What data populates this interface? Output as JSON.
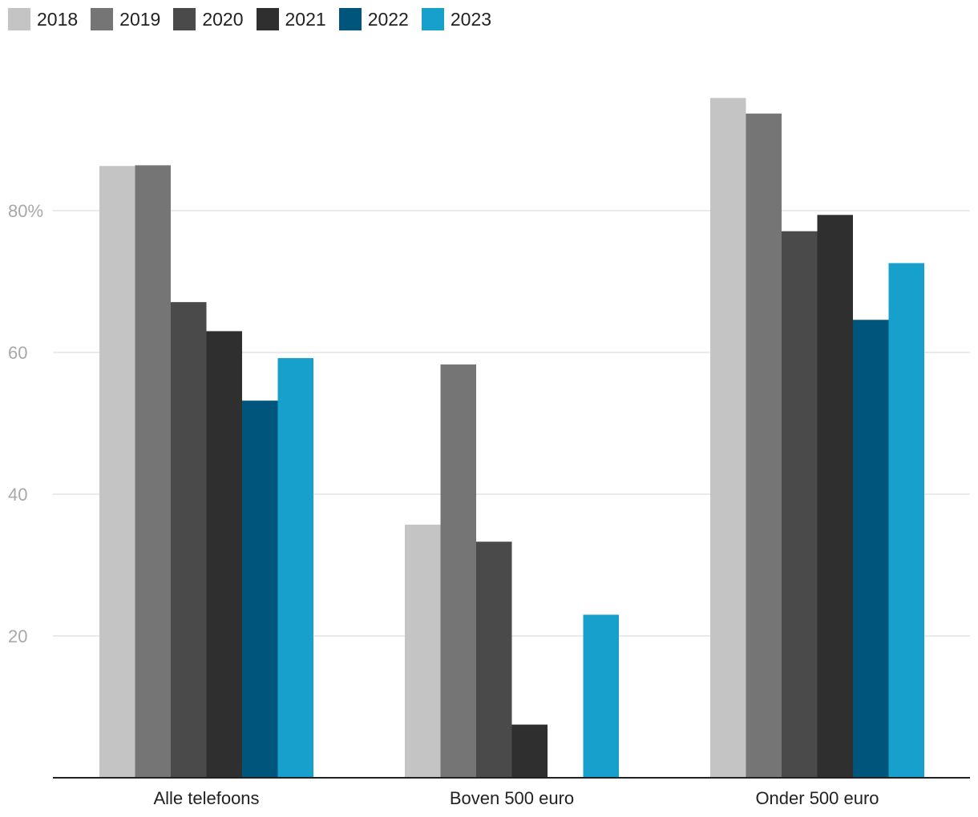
{
  "chart_data": {
    "type": "bar",
    "title": "",
    "xlabel": "",
    "ylabel": "",
    "ylim": [
      0,
      100
    ],
    "y_ticks": [
      {
        "value": 20,
        "label": "20"
      },
      {
        "value": 40,
        "label": "40"
      },
      {
        "value": 60,
        "label": "60"
      },
      {
        "value": 80,
        "label": "80%"
      }
    ],
    "categories": [
      "Alle telefoons",
      "Boven 500 euro",
      "Onder 500 euro"
    ],
    "series": [
      {
        "name": "2018",
        "color": "#c4c4c4",
        "values": [
          86.3,
          35.7,
          95.9
        ]
      },
      {
        "name": "2019",
        "color": "#757575",
        "values": [
          86.4,
          58.3,
          93.7
        ]
      },
      {
        "name": "2020",
        "color": "#4a4a4a",
        "values": [
          67.1,
          33.3,
          77.1
        ]
      },
      {
        "name": "2021",
        "color": "#2f2f2f",
        "values": [
          63.0,
          7.5,
          79.4
        ]
      },
      {
        "name": "2022",
        "color": "#00557c",
        "values": [
          53.2,
          null,
          64.6
        ]
      },
      {
        "name": "2023",
        "color": "#18a0cd",
        "values": [
          59.2,
          23.0,
          72.6
        ]
      }
    ],
    "legend_position": "top-left",
    "grid": true
  }
}
